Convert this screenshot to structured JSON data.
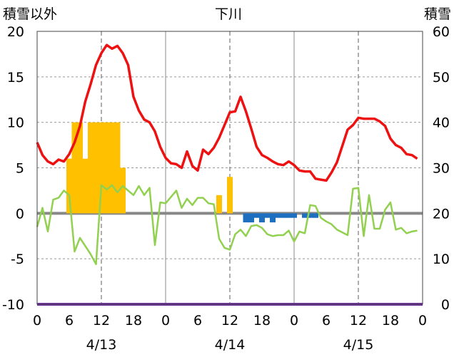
{
  "chart_data": {
    "type": "line",
    "title": "下川",
    "left_axis": {
      "label": "積雪以外",
      "range": [
        -10,
        20
      ],
      "ticks": [
        -10,
        -5,
        0,
        5,
        10,
        15,
        20
      ]
    },
    "right_axis": {
      "label": "積雪",
      "range": [
        0,
        60
      ],
      "ticks": [
        0,
        10,
        20,
        30,
        40,
        50,
        60
      ]
    },
    "x_axis": {
      "unit": "hour",
      "range": [
        0,
        72
      ],
      "tick_labels": [
        "0",
        "6",
        "12",
        "18",
        "0",
        "6",
        "12",
        "18",
        "0",
        "6",
        "12",
        "18",
        "0"
      ],
      "date_labels": [
        {
          "text": "4/13",
          "hour": 12
        },
        {
          "text": "4/14",
          "hour": 36
        },
        {
          "text": "4/15",
          "hour": 60
        }
      ]
    },
    "grid": true,
    "colors": {
      "red_line": "#ee1111",
      "green_line": "#92d050",
      "orange_bars": "#ffc000",
      "blue_bars": "#1f6fc0",
      "purple_line": "#7030a0",
      "grid": "#999999"
    },
    "series": [
      {
        "color_key": "red_line",
        "kind": "line",
        "axis": "left",
        "x": [
          0,
          1,
          2,
          3,
          4,
          5,
          6,
          7,
          8,
          9,
          10,
          11,
          12,
          13,
          14,
          15,
          16,
          17,
          18,
          19,
          20,
          21,
          22,
          23,
          24,
          25,
          26,
          27,
          28,
          29,
          30,
          31,
          32,
          33,
          34,
          35,
          36,
          37,
          38,
          39,
          40,
          41,
          42,
          43,
          44,
          45,
          46,
          47,
          48,
          49,
          50,
          51,
          52,
          53,
          54,
          55,
          56,
          57,
          58,
          59,
          60,
          61,
          62,
          63,
          64,
          65,
          66,
          67,
          68,
          69,
          70,
          71
        ],
        "values": [
          7.8,
          6.4,
          5.7,
          5.4,
          5.9,
          5.7,
          6.5,
          7.8,
          9.6,
          12.3,
          14.2,
          16.3,
          17.6,
          18.5,
          18.1,
          18.4,
          17.6,
          16.3,
          12.8,
          11.3,
          10.3,
          10.0,
          9.0,
          7.3,
          6.1,
          5.5,
          5.4,
          5.0,
          6.8,
          5.2,
          4.7,
          7.0,
          6.5,
          7.2,
          8.3,
          9.7,
          11.1,
          11.2,
          12.8,
          11.2,
          9.3,
          7.3,
          6.4,
          6.1,
          5.7,
          5.4,
          5.3,
          5.7,
          5.3,
          4.7,
          4.6,
          4.6,
          3.8,
          3.7,
          3.6,
          4.5,
          5.6,
          7.4,
          9.2,
          9.7,
          10.5,
          10.4,
          10.4,
          10.4,
          10.1,
          9.6,
          8.2,
          7.5,
          7.2,
          6.5,
          6.4,
          6.0
        ]
      },
      {
        "color_key": "green_line",
        "kind": "line",
        "axis": "left",
        "x": [
          0,
          1,
          2,
          3,
          4,
          5,
          6,
          7,
          8,
          9,
          10,
          11,
          12,
          13,
          14,
          15,
          16,
          17,
          18,
          19,
          20,
          21,
          22,
          23,
          24,
          25,
          26,
          27,
          28,
          29,
          30,
          31,
          32,
          33,
          34,
          35,
          36,
          37,
          38,
          39,
          40,
          41,
          42,
          43,
          44,
          45,
          46,
          47,
          48,
          49,
          50,
          51,
          52,
          53,
          54,
          55,
          56,
          57,
          58,
          59,
          60,
          61,
          62,
          63,
          64,
          65,
          66,
          67,
          68,
          69,
          70,
          71
        ],
        "values": [
          -1.5,
          0.6,
          -2.0,
          1.5,
          1.7,
          2.5,
          2.0,
          -4.2,
          -2.7,
          -3.6,
          -4.5,
          -5.6,
          3.1,
          2.6,
          3.1,
          2.3,
          3.0,
          2.5,
          2.0,
          3.0,
          2.0,
          2.8,
          -3.5,
          1.2,
          1.1,
          1.8,
          2.5,
          0.6,
          1.6,
          0.9,
          1.7,
          1.7,
          1.1,
          1.0,
          -2.8,
          -3.8,
          -4.0,
          -2.3,
          -1.8,
          -2.5,
          -1.4,
          -1.3,
          -1.6,
          -2.3,
          -2.5,
          -2.4,
          -2.4,
          -1.9,
          -3.1,
          -2.0,
          -2.2,
          0.9,
          0.8,
          -0.5,
          -0.9,
          -1.2,
          -1.8,
          -2.1,
          -2.4,
          2.7,
          2.8,
          -2.5,
          2.0,
          -1.7,
          -1.7,
          0.4,
          1.2,
          -1.8,
          -1.6,
          -2.2,
          -2.0,
          -1.9
        ]
      },
      {
        "color_key": "orange_bars",
        "kind": "bar",
        "axis": "left",
        "x": [
          6,
          7,
          8,
          9,
          10,
          11,
          12,
          13,
          14,
          15,
          16,
          34,
          36
        ],
        "values": [
          6,
          10,
          10,
          6,
          10,
          10,
          10,
          10,
          10,
          10,
          5,
          2,
          4
        ]
      },
      {
        "color_key": "blue_bars",
        "kind": "bar",
        "axis": "left",
        "x": [
          39,
          40,
          41,
          42,
          43,
          44,
          45,
          46,
          47,
          48,
          50,
          51,
          52
        ],
        "values": [
          -1.0,
          -1.0,
          -0.5,
          -1.0,
          -0.5,
          -1.0,
          -0.5,
          -0.5,
          -0.5,
          -0.5,
          -0.5,
          -0.5,
          -0.5
        ]
      },
      {
        "color_key": "purple_line",
        "kind": "line",
        "axis": "right",
        "x": [
          0,
          72
        ],
        "values": [
          0,
          0
        ]
      }
    ]
  }
}
